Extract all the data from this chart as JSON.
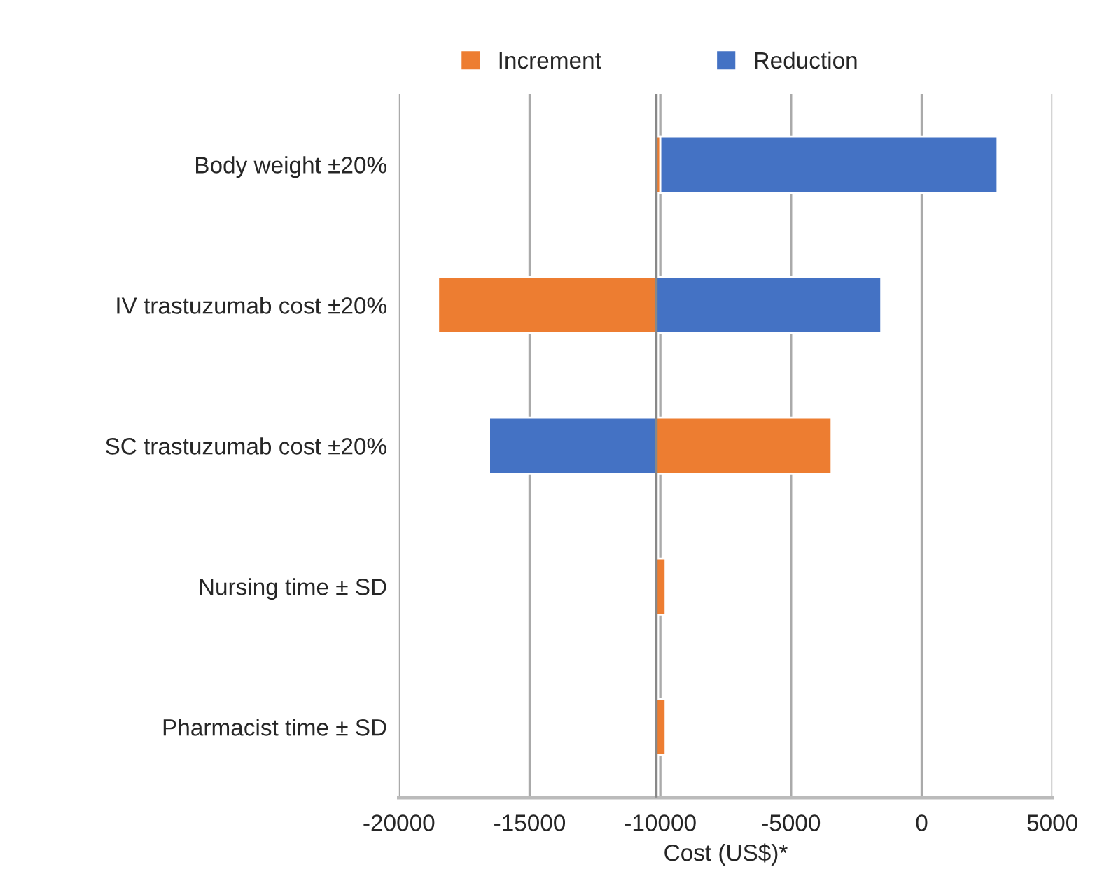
{
  "chart_data": {
    "type": "bar",
    "orientation": "horizontal",
    "xlabel": "Cost (US$)*",
    "categories": [
      "Body weight ±20%",
      "IV trastuzumab cost ±20%",
      "SC trastuzumab cost ±20%",
      "Nursing time ± SD",
      "Pharmacist time ± SD"
    ],
    "series": [
      {
        "name": "Increment",
        "color": "#ed7d31",
        "base": [
          -10150,
          -10150,
          -10150,
          -10150,
          -10150
        ],
        "values": [
          150,
          -8350,
          6700,
          350,
          350
        ]
      },
      {
        "name": "Reduction",
        "color": "#4472c4",
        "base": [
          -10000,
          -10150,
          -10150,
          null,
          null
        ],
        "values": [
          12900,
          8600,
          -6400,
          null,
          null
        ]
      }
    ],
    "xlim": [
      -20000,
      5000
    ],
    "xticks": [
      -20000,
      -15000,
      -10000,
      -5000,
      0,
      5000
    ],
    "ref_lines": [
      {
        "axis": "x",
        "value": -10150,
        "color": "#888888"
      }
    ],
    "grid": "x",
    "legend": "top"
  }
}
